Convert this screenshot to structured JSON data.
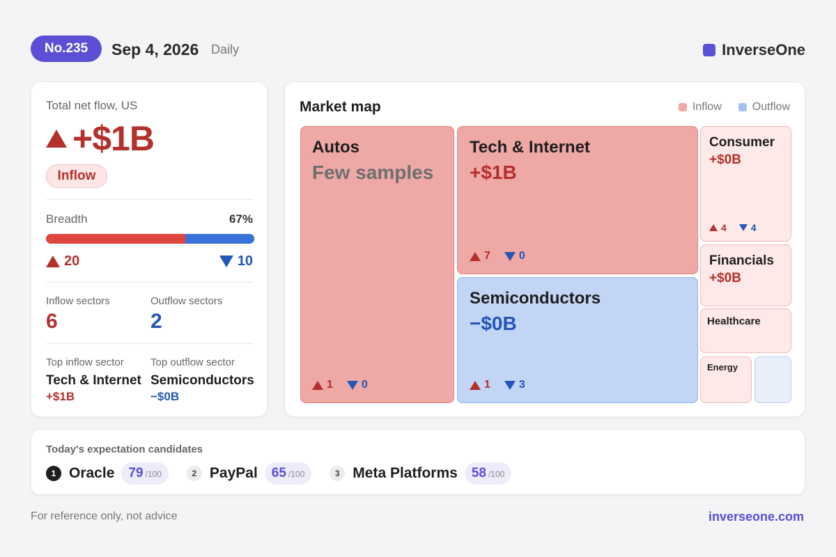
{
  "header": {
    "issue_badge": "No.235",
    "date": "Sep 4, 2026",
    "period": "Daily",
    "brand": "InverseOne",
    "brand_color": "#5b4fd6"
  },
  "summary": {
    "total_label": "Total net flow, US",
    "total_value": "+$1B",
    "direction_pill": "Inflow",
    "breadth_label": "Breadth",
    "breadth_pct": "67%",
    "breadth_fraction": 0.67,
    "up_count": "20",
    "down_count": "10",
    "inflow_sectors_label": "Inflow sectors",
    "inflow_sectors": "6",
    "outflow_sectors_label": "Outflow sectors",
    "outflow_sectors": "2",
    "top_inflow_label": "Top inflow sector",
    "top_inflow_name": "Tech & Internet",
    "top_inflow_value": "+$1B",
    "top_outflow_label": "Top outflow sector",
    "top_outflow_name": "Semiconductors",
    "top_outflow_value": "−$0B",
    "inflow_color": "#b3302c",
    "outflow_color": "#2356b5"
  },
  "market_map": {
    "title": "Market map",
    "legend_inflow": "Inflow",
    "legend_outflow": "Outflow",
    "tiles": {
      "autos": {
        "name": "Autos",
        "value": "Few samples",
        "up": "1",
        "down": "0"
      },
      "tech": {
        "name": "Tech & Internet",
        "value": "+$1B",
        "up": "7",
        "down": "0"
      },
      "semis": {
        "name": "Semiconductors",
        "value": "−$0B",
        "up": "1",
        "down": "3"
      },
      "consumer": {
        "name": "Consumer",
        "value": "+$0B",
        "up": "4",
        "down": "4"
      },
      "financials": {
        "name": "Financials",
        "value": "+$0B"
      },
      "healthcare": {
        "name": "Healthcare"
      },
      "energy": {
        "name": "Energy"
      }
    }
  },
  "candidates": {
    "label": "Today's expectation candidates",
    "items": [
      {
        "rank": "1",
        "name": "Oracle",
        "score": "79",
        "max": "/100"
      },
      {
        "rank": "2",
        "name": "PayPal",
        "score": "65",
        "max": "/100"
      },
      {
        "rank": "3",
        "name": "Meta Platforms",
        "score": "58",
        "max": "/100"
      }
    ]
  },
  "footer": {
    "disclaimer": "For reference only, not advice",
    "site": "inverseone.com"
  }
}
